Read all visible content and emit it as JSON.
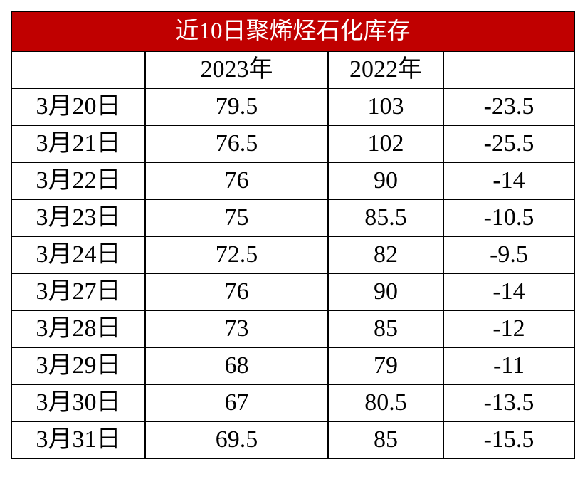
{
  "title": "近10日聚烯烃石化库存",
  "header": {
    "col1": "2023年",
    "col2": "2022年"
  },
  "table": {
    "rows": [
      [
        "3月20日",
        "79.5",
        "103",
        "-23.5"
      ],
      [
        "3月21日",
        "76.5",
        "102",
        "-25.5"
      ],
      [
        "3月22日",
        "76",
        "90",
        "-14"
      ],
      [
        "3月23日",
        "75",
        "85.5",
        "-10.5"
      ],
      [
        "3月24日",
        "72.5",
        "82",
        "-9.5"
      ],
      [
        "3月27日",
        "76",
        "90",
        "-14"
      ],
      [
        "3月28日",
        "73",
        "85",
        "-12"
      ],
      [
        "3月29日",
        "68",
        "79",
        "-11"
      ],
      [
        "3月30日",
        "67",
        "80.5",
        "-13.5"
      ],
      [
        "3月31日",
        "69.5",
        "85",
        "-15.5"
      ]
    ]
  }
}
